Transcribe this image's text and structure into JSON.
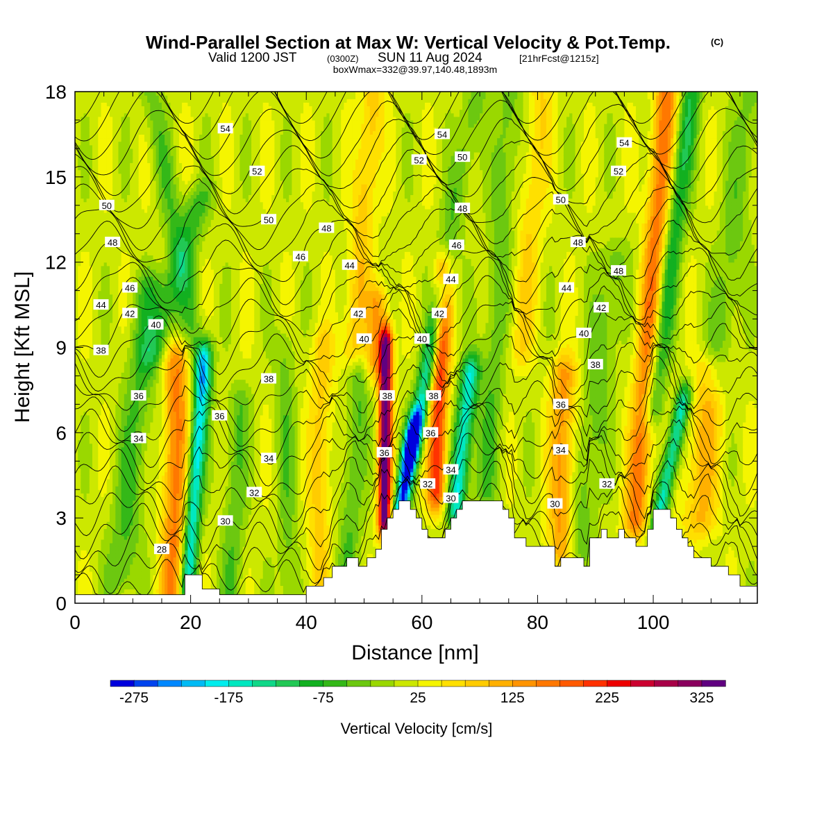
{
  "chart_data": {
    "type": "heatmap",
    "title": "Wind-Parallel Section at Max W: Vertical Velocity & Pot.Temp.",
    "copyright": "(C)",
    "subtitle_valid": "Valid 1200 JST",
    "subtitle_z": "(0300Z)",
    "subtitle_date": "SUN 11 Aug 2024",
    "subtitle_fcst": "[21hrFcst@1215z]",
    "box_info": "boxWmax=332@39.97,140.48,1893m",
    "xlabel": "Distance [nm]",
    "ylabel": "Height [Kft MSL]",
    "xlim": [
      0,
      118
    ],
    "ylim": [
      0,
      18
    ],
    "x_ticks": [
      0,
      20,
      40,
      60,
      80,
      100
    ],
    "y_ticks": [
      0,
      3,
      6,
      9,
      12,
      15,
      18
    ],
    "colorbar": {
      "label": "Vertical Velocity [cm/s]",
      "range": [
        -300,
        350
      ],
      "tick_values": [
        -275,
        -175,
        -75,
        25,
        125,
        225,
        325
      ],
      "tick_labels": [
        "-275",
        "-175",
        "-75",
        "25",
        "125",
        "225",
        "325"
      ],
      "colors": [
        "#0000dd",
        "#0044ee",
        "#0088ff",
        "#00bbf5",
        "#00eeee",
        "#00e8c0",
        "#10d888",
        "#22c855",
        "#12b020",
        "#34b818",
        "#6cc810",
        "#9ad800",
        "#cce800",
        "#f5f500",
        "#ffe000",
        "#ffcc00",
        "#ffb000",
        "#ff9400",
        "#ff7800",
        "#ff5a00",
        "#ff3200",
        "#ee0000",
        "#cc0030",
        "#a80048",
        "#8a005e",
        "#600080"
      ]
    },
    "cells_note": "vertical velocity field in cm/s",
    "w_features": [
      {
        "x": 8,
        "w": -70,
        "y0": 1,
        "y1": 11,
        "slope": 0.5,
        "width": 2.8
      },
      {
        "x": 17,
        "w": 140,
        "y0": 0.5,
        "y1": 8.5,
        "slope": 0.08,
        "width": 2.2
      },
      {
        "x": 19.5,
        "w": -200,
        "y0": 0.7,
        "y1": 8.5,
        "slope": 0.35,
        "width": 1.4
      },
      {
        "x": 22,
        "w": -55,
        "y0": 8,
        "y1": 18,
        "slope": -0.9,
        "width": 2
      },
      {
        "x": 14,
        "w": -80,
        "y0": 9,
        "y1": 14,
        "slope": 1.4,
        "width": 2.5
      },
      {
        "x": 27,
        "w": -60,
        "y0": 0.5,
        "y1": 7,
        "slope": 0.2,
        "width": 2
      },
      {
        "x": 37,
        "w": -50,
        "y0": 0.5,
        "y1": 9,
        "slope": -0.1,
        "width": 1.8
      },
      {
        "x": 42,
        "w": 70,
        "y0": 0.5,
        "y1": 9,
        "slope": 0.1,
        "width": 2
      },
      {
        "x": 47,
        "w": -65,
        "y0": 1,
        "y1": 8,
        "slope": 0.3,
        "width": 2
      },
      {
        "x": 48,
        "w": 80,
        "y0": 9,
        "y1": 18,
        "slope": 0.4,
        "width": 2
      },
      {
        "x": 53.5,
        "w": 330,
        "y0": 3,
        "y1": 9,
        "slope": 0.05,
        "width": 1.1
      },
      {
        "x": 52,
        "w": 110,
        "y0": 8.5,
        "y1": 10.5,
        "slope": 0.2,
        "width": 1.8
      },
      {
        "x": 56.5,
        "w": -280,
        "y0": 3.5,
        "y1": 6,
        "slope": 0.8,
        "width": 1.3
      },
      {
        "x": 58.5,
        "w": -170,
        "y0": 5.5,
        "y1": 11,
        "slope": 0.9,
        "width": 1.5
      },
      {
        "x": 62.5,
        "w": 200,
        "y0": 4,
        "y1": 11.5,
        "slope": 0.15,
        "width": 1.6
      },
      {
        "x": 66,
        "w": -190,
        "y0": 3.5,
        "y1": 8,
        "slope": 0.5,
        "width": 1.6
      },
      {
        "x": 64,
        "w": -60,
        "y0": 12,
        "y1": 18,
        "slope": 0.9,
        "width": 2
      },
      {
        "x": 71,
        "w": -60,
        "y0": 4,
        "y1": 18,
        "slope": 0.3,
        "width": 2.2
      },
      {
        "x": 77,
        "w": 60,
        "y0": 9,
        "y1": 18,
        "slope": 0.4,
        "width": 2.2
      },
      {
        "x": 84,
        "w": 120,
        "y0": 2,
        "y1": 8,
        "slope": 0.1,
        "width": 2.2
      },
      {
        "x": 87,
        "w": -60,
        "y0": 2,
        "y1": 12,
        "slope": 0.6,
        "width": 2.5
      },
      {
        "x": 97,
        "w": 150,
        "y0": 3,
        "y1": 18,
        "slope": 0.35,
        "width": 2
      },
      {
        "x": 101,
        "w": -180,
        "y0": 3,
        "y1": 7,
        "slope": 1,
        "width": 1.4
      },
      {
        "x": 100,
        "w": -110,
        "y0": 7,
        "y1": 18,
        "slope": 0.6,
        "width": 1.8
      },
      {
        "x": 108,
        "w": 90,
        "y0": 3,
        "y1": 8,
        "slope": 0.3,
        "width": 3
      },
      {
        "x": 111,
        "w": -55,
        "y0": 8,
        "y1": 18,
        "slope": 0.6,
        "width": 2.5
      }
    ],
    "terrain": [
      [
        0,
        0.3
      ],
      [
        19,
        0.3
      ],
      [
        19,
        1
      ],
      [
        22,
        1
      ],
      [
        22,
        0.5
      ],
      [
        25,
        0.5
      ],
      [
        25,
        0.3
      ],
      [
        40,
        0.3
      ],
      [
        40,
        0.6
      ],
      [
        43,
        0.6
      ],
      [
        43,
        0.9
      ],
      [
        44.5,
        0.9
      ],
      [
        44.5,
        1.3
      ],
      [
        47,
        1.3
      ],
      [
        47,
        1.6
      ],
      [
        49,
        1.6
      ],
      [
        49,
        1.3
      ],
      [
        50.5,
        1.3
      ],
      [
        50.5,
        1.6
      ],
      [
        52,
        1.6
      ],
      [
        52,
        1.9
      ],
      [
        53,
        1.9
      ],
      [
        53,
        2.6
      ],
      [
        54,
        2.6
      ],
      [
        54,
        3.0
      ],
      [
        55,
        3.0
      ],
      [
        55,
        3.3
      ],
      [
        56,
        3.3
      ],
      [
        56,
        3.6
      ],
      [
        58,
        3.6
      ],
      [
        58,
        3.3
      ],
      [
        59,
        3.3
      ],
      [
        59,
        3.0
      ],
      [
        60,
        3.0
      ],
      [
        60,
        2.6
      ],
      [
        61,
        2.6
      ],
      [
        61,
        2.3
      ],
      [
        64,
        2.3
      ],
      [
        64,
        2.6
      ],
      [
        65,
        2.6
      ],
      [
        65,
        3.0
      ],
      [
        66,
        3.0
      ],
      [
        66,
        3.3
      ],
      [
        67,
        3.3
      ],
      [
        67,
        3.6
      ],
      [
        74,
        3.6
      ],
      [
        74,
        3.3
      ],
      [
        75,
        3.3
      ],
      [
        75,
        3.0
      ],
      [
        76,
        3.0
      ],
      [
        76,
        2.3
      ],
      [
        78,
        2.3
      ],
      [
        78,
        2.0
      ],
      [
        83,
        2.0
      ],
      [
        83,
        1.3
      ],
      [
        84,
        1.3
      ],
      [
        84,
        1.6
      ],
      [
        88,
        1.6
      ],
      [
        88,
        1.3
      ],
      [
        89,
        1.3
      ],
      [
        89,
        2.3
      ],
      [
        91,
        2.3
      ],
      [
        91,
        2.6
      ],
      [
        92,
        2.6
      ],
      [
        92,
        2.3
      ],
      [
        94,
        2.3
      ],
      [
        94,
        2.6
      ],
      [
        95,
        2.6
      ],
      [
        95,
        2.3
      ],
      [
        97,
        2.3
      ],
      [
        97,
        2.0
      ],
      [
        99,
        2.0
      ],
      [
        99,
        2.6
      ],
      [
        100,
        2.6
      ],
      [
        100,
        3.3
      ],
      [
        103,
        3.3
      ],
      [
        103,
        3.0
      ],
      [
        104,
        3.0
      ],
      [
        104,
        2.6
      ],
      [
        105,
        2.6
      ],
      [
        105,
        2.3
      ],
      [
        106,
        2.3
      ],
      [
        106,
        2.0
      ],
      [
        107,
        2.0
      ],
      [
        107,
        1.6
      ],
      [
        110,
        1.6
      ],
      [
        110,
        1.3
      ],
      [
        113,
        1.3
      ],
      [
        113,
        1.0
      ],
      [
        115,
        1.0
      ],
      [
        115,
        0.6
      ],
      [
        118,
        0.6
      ]
    ],
    "theta_contours": [
      28,
      29,
      30,
      31,
      32,
      33,
      34,
      35,
      36,
      37,
      38,
      39,
      40,
      41,
      42,
      43,
      44,
      45,
      46,
      47,
      48,
      49,
      50,
      51,
      52,
      53,
      54,
      55
    ],
    "contour_labels": [
      {
        "x": 26,
        "y": 16.7,
        "text": "54"
      },
      {
        "x": 31.5,
        "y": 15.2,
        "text": "52"
      },
      {
        "x": 5.5,
        "y": 14.0,
        "text": "50"
      },
      {
        "x": 33.5,
        "y": 13.5,
        "text": "50"
      },
      {
        "x": 43.5,
        "y": 13.2,
        "text": "48"
      },
      {
        "x": 6.5,
        "y": 12.7,
        "text": "48"
      },
      {
        "x": 39,
        "y": 12.2,
        "text": "46"
      },
      {
        "x": 9.5,
        "y": 11.1,
        "text": "46"
      },
      {
        "x": 4.5,
        "y": 10.5,
        "text": "44"
      },
      {
        "x": 9.5,
        "y": 10.2,
        "text": "42"
      },
      {
        "x": 14,
        "y": 9.8,
        "text": "40"
      },
      {
        "x": 4.5,
        "y": 8.9,
        "text": "38"
      },
      {
        "x": 11,
        "y": 7.3,
        "text": "36"
      },
      {
        "x": 11,
        "y": 5.8,
        "text": "34"
      },
      {
        "x": 15,
        "y": 1.9,
        "text": "28"
      },
      {
        "x": 25,
        "y": 6.6,
        "text": "36"
      },
      {
        "x": 33.5,
        "y": 7.9,
        "text": "38"
      },
      {
        "x": 33.5,
        "y": 5.1,
        "text": "34"
      },
      {
        "x": 31,
        "y": 3.9,
        "text": "32"
      },
      {
        "x": 26,
        "y": 2.9,
        "text": "30"
      },
      {
        "x": 47.5,
        "y": 11.9,
        "text": "44"
      },
      {
        "x": 49,
        "y": 10.2,
        "text": "42"
      },
      {
        "x": 50,
        "y": 9.3,
        "text": "40"
      },
      {
        "x": 54,
        "y": 7.3,
        "text": "38"
      },
      {
        "x": 53.5,
        "y": 5.3,
        "text": "36"
      },
      {
        "x": 63.5,
        "y": 16.5,
        "text": "54"
      },
      {
        "x": 59.5,
        "y": 15.6,
        "text": "52"
      },
      {
        "x": 67,
        "y": 15.7,
        "text": "50"
      },
      {
        "x": 67,
        "y": 13.9,
        "text": "48"
      },
      {
        "x": 66,
        "y": 12.6,
        "text": "46"
      },
      {
        "x": 65,
        "y": 11.4,
        "text": "44"
      },
      {
        "x": 63,
        "y": 10.2,
        "text": "42"
      },
      {
        "x": 60,
        "y": 9.3,
        "text": "40"
      },
      {
        "x": 62,
        "y": 7.3,
        "text": "38"
      },
      {
        "x": 61.5,
        "y": 6.0,
        "text": "36"
      },
      {
        "x": 65,
        "y": 4.7,
        "text": "34"
      },
      {
        "x": 61,
        "y": 4.2,
        "text": "32"
      },
      {
        "x": 65,
        "y": 3.7,
        "text": "30"
      },
      {
        "x": 95,
        "y": 16.2,
        "text": "54"
      },
      {
        "x": 94,
        "y": 15.2,
        "text": "52"
      },
      {
        "x": 84,
        "y": 14.2,
        "text": "50"
      },
      {
        "x": 87,
        "y": 12.7,
        "text": "48"
      },
      {
        "x": 94,
        "y": 11.7,
        "text": "48"
      },
      {
        "x": 85,
        "y": 11.1,
        "text": "44"
      },
      {
        "x": 91,
        "y": 10.4,
        "text": "42"
      },
      {
        "x": 88,
        "y": 9.5,
        "text": "40"
      },
      {
        "x": 90,
        "y": 8.4,
        "text": "38"
      },
      {
        "x": 84,
        "y": 7.0,
        "text": "36"
      },
      {
        "x": 84,
        "y": 5.4,
        "text": "34"
      },
      {
        "x": 92,
        "y": 4.2,
        "text": "32"
      },
      {
        "x": 83,
        "y": 3.5,
        "text": "30"
      }
    ]
  }
}
